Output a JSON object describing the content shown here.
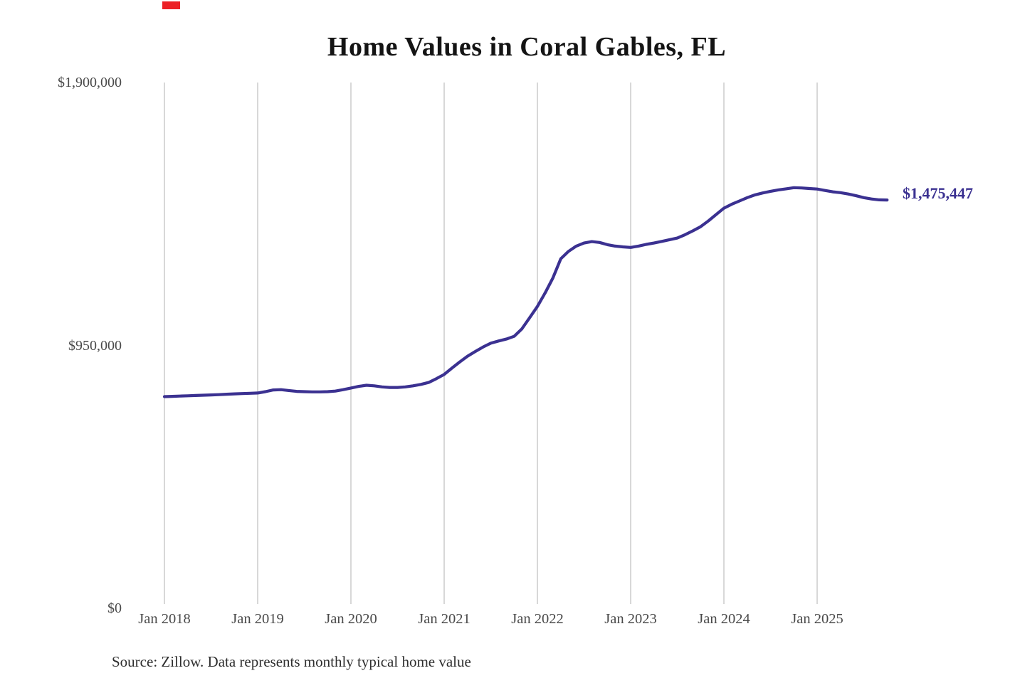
{
  "page": {
    "title": "Home Values in Coral Gables, FL"
  },
  "decorations": {
    "top_left_mark_color": "#ec2025"
  },
  "annotations": {
    "latest_value_label": "$1,475,447"
  },
  "footer": {
    "source_note": "Source: Zillow. Data represents monthly typical home value"
  },
  "chart_data": {
    "type": "line",
    "title": "Home Values in Coral Gables, FL",
    "series_name": "Monthly typical home value",
    "frequency": "monthly",
    "start": "Jan 2018",
    "end": "Oct 2025",
    "x_tick_labels": [
      "Jan 2018",
      "Jan 2019",
      "Jan 2020",
      "Jan 2021",
      "Jan 2022",
      "Jan 2023",
      "Jan 2024",
      "Jan 2025"
    ],
    "y_ticks": [
      {
        "label": "$1,900,000",
        "value": 1900000
      },
      {
        "label": "$950,000",
        "value": 950000
      },
      {
        "label": "$0",
        "value": 0
      }
    ],
    "ylim": [
      0,
      1900000
    ],
    "grid": "vertical-only",
    "gridline_color": "#cbcbcb",
    "line_color": "#3b3191",
    "latest_value": 1475447,
    "values": [
      765000,
      766000,
      767000,
      768000,
      769000,
      770000,
      771000,
      772000,
      773500,
      775000,
      776000,
      777000,
      778000,
      783000,
      789000,
      790000,
      787000,
      784000,
      783000,
      782000,
      782000,
      783000,
      785000,
      790000,
      796000,
      802000,
      806000,
      804000,
      800000,
      798000,
      798000,
      800000,
      804000,
      809000,
      816000,
      830000,
      845000,
      868000,
      890000,
      911000,
      928000,
      944000,
      958000,
      966000,
      973000,
      983000,
      1010000,
      1050000,
      1091000,
      1140000,
      1194000,
      1263000,
      1290000,
      1309000,
      1320000,
      1325000,
      1322000,
      1314000,
      1309000,
      1306000,
      1304000,
      1309000,
      1315000,
      1320000,
      1326000,
      1332000,
      1338000,
      1350000,
      1364000,
      1379000,
      1400000,
      1423000,
      1446000,
      1460000,
      1472000,
      1484000,
      1494000,
      1501000,
      1507000,
      1512000,
      1516000,
      1520000,
      1519000,
      1517000,
      1515000,
      1510000,
      1505000,
      1502000,
      1497000,
      1491000,
      1484000,
      1479000,
      1476000,
      1475447
    ]
  }
}
